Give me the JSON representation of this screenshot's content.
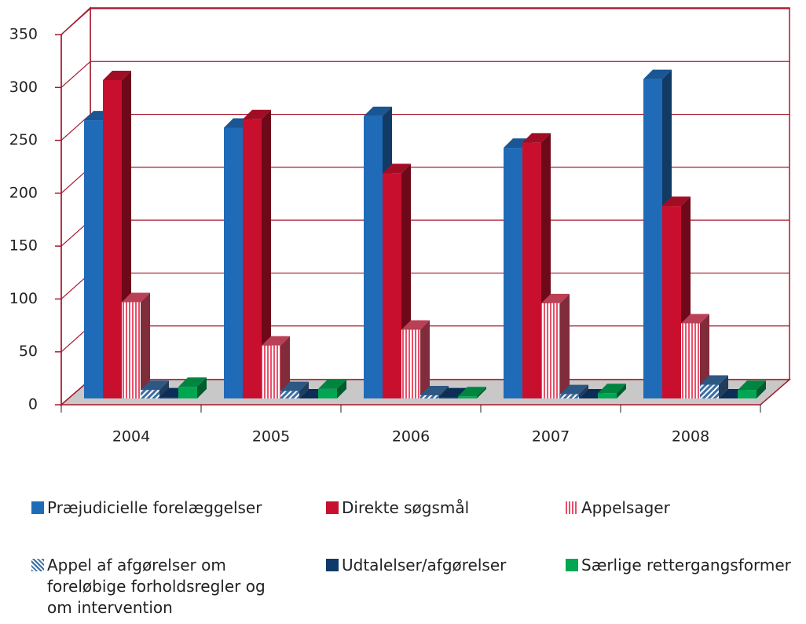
{
  "chart_data": {
    "type": "bar",
    "categories": [
      "2004",
      "2005",
      "2006",
      "2007",
      "2008"
    ],
    "series": [
      {
        "name": "Præjudicielle forelæggelser",
        "color": "#1f6bb8",
        "values": [
          263,
          256,
          267,
          237,
          302
        ]
      },
      {
        "name": "Direkte søgsmål",
        "color": "#c8102e",
        "values": [
          301,
          264,
          213,
          242,
          182
        ]
      },
      {
        "name": "Appelsager",
        "color": "#e8506a",
        "pattern": "vertical",
        "values": [
          91,
          50,
          65,
          90,
          71
        ]
      },
      {
        "name": "Appel af afgørelser om foreløbige forholdsregler og om intervention",
        "color": "#3a6ea5",
        "pattern": "diagonal",
        "values": [
          8,
          7,
          3,
          4,
          13
        ]
      },
      {
        "name": "Udtalelser/afgørelser",
        "color": "#0d3a6b",
        "values": [
          1,
          0,
          1,
          0,
          0
        ]
      },
      {
        "name": "Særlige rettergangsformer",
        "color": "#00a651",
        "values": [
          11,
          9,
          2,
          5,
          8
        ]
      }
    ],
    "ylim": [
      0,
      350
    ],
    "yticks": [
      0,
      50,
      100,
      150,
      200,
      250,
      300,
      350
    ],
    "grid": true
  }
}
